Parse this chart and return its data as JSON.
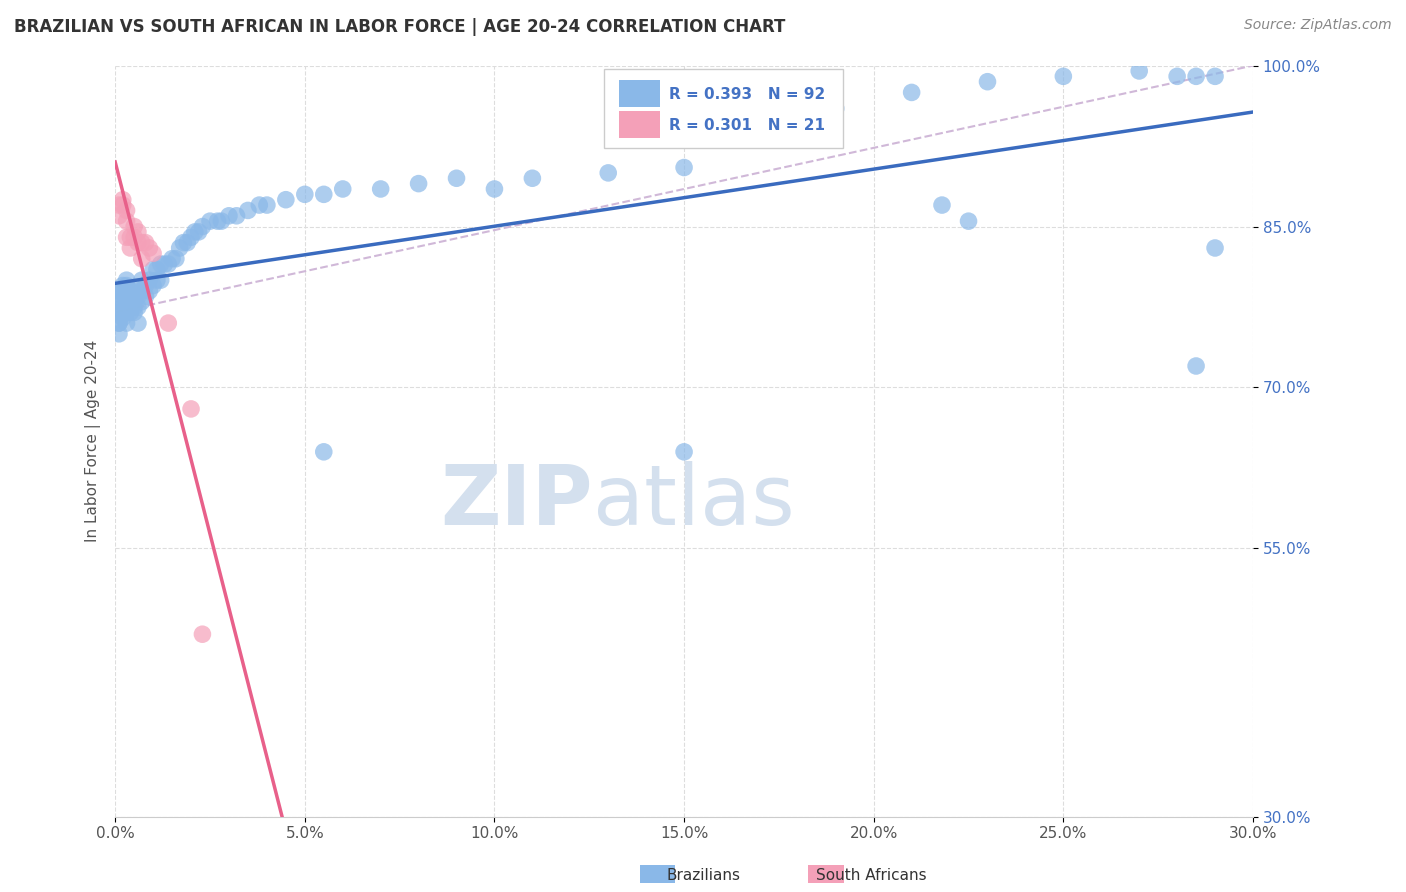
{
  "title": "BRAZILIAN VS SOUTH AFRICAN IN LABOR FORCE | AGE 20-24 CORRELATION CHART",
  "source_text": "Source: ZipAtlas.com",
  "ylabel": "In Labor Force | Age 20-24",
  "xlim": [
    0.0,
    0.3
  ],
  "ylim": [
    0.3,
    1.0
  ],
  "xtick_labels": [
    "0.0%",
    "5.0%",
    "10.0%",
    "15.0%",
    "20.0%",
    "25.0%",
    "30.0%"
  ],
  "xtick_values": [
    0.0,
    0.05,
    0.1,
    0.15,
    0.2,
    0.25,
    0.3
  ],
  "ytick_labels": [
    "100.0%",
    "85.0%",
    "70.0%",
    "55.0%",
    "30.0%"
  ],
  "ytick_values": [
    1.0,
    0.85,
    0.7,
    0.55,
    0.3
  ],
  "R_blue": 0.393,
  "N_blue": 92,
  "R_pink": 0.301,
  "N_pink": 21,
  "blue_color": "#8AB8E8",
  "pink_color": "#F4A0B8",
  "blue_line_color": "#3A6BBF",
  "pink_line_color": "#E8608A",
  "dashed_line_color": "#D0B8D8",
  "watermark_text": "ZIPatlas",
  "watermark_color": "#D4E0EE",
  "legend_blue_label": "Brazilians",
  "legend_pink_label": "South Africans",
  "blue_x": [
    0.001,
    0.001,
    0.001,
    0.001,
    0.001,
    0.001,
    0.002,
    0.002,
    0.002,
    0.002,
    0.002,
    0.002,
    0.002,
    0.003,
    0.003,
    0.003,
    0.003,
    0.003,
    0.003,
    0.003,
    0.003,
    0.004,
    0.004,
    0.004,
    0.004,
    0.004,
    0.005,
    0.005,
    0.005,
    0.005,
    0.006,
    0.006,
    0.006,
    0.006,
    0.007,
    0.007,
    0.007,
    0.008,
    0.008,
    0.009,
    0.009,
    0.01,
    0.01,
    0.011,
    0.011,
    0.012,
    0.012,
    0.013,
    0.014,
    0.015,
    0.016,
    0.017,
    0.018,
    0.019,
    0.02,
    0.021,
    0.022,
    0.023,
    0.025,
    0.027,
    0.028,
    0.03,
    0.032,
    0.035,
    0.038,
    0.04,
    0.045,
    0.05,
    0.055,
    0.06,
    0.07,
    0.08,
    0.09,
    0.1,
    0.11,
    0.13,
    0.15,
    0.17,
    0.19,
    0.21,
    0.23,
    0.25,
    0.27,
    0.28,
    0.285,
    0.29,
    0.218,
    0.225,
    0.15,
    0.285,
    0.055,
    0.29
  ],
  "blue_y": [
    0.75,
    0.76,
    0.77,
    0.78,
    0.79,
    0.76,
    0.765,
    0.77,
    0.775,
    0.78,
    0.785,
    0.79,
    0.795,
    0.76,
    0.77,
    0.775,
    0.78,
    0.785,
    0.79,
    0.795,
    0.8,
    0.77,
    0.775,
    0.78,
    0.785,
    0.79,
    0.77,
    0.775,
    0.78,
    0.785,
    0.76,
    0.775,
    0.785,
    0.79,
    0.78,
    0.79,
    0.8,
    0.785,
    0.795,
    0.79,
    0.8,
    0.795,
    0.81,
    0.8,
    0.81,
    0.8,
    0.815,
    0.815,
    0.815,
    0.82,
    0.82,
    0.83,
    0.835,
    0.835,
    0.84,
    0.845,
    0.845,
    0.85,
    0.855,
    0.855,
    0.855,
    0.86,
    0.86,
    0.865,
    0.87,
    0.87,
    0.875,
    0.88,
    0.88,
    0.885,
    0.885,
    0.89,
    0.895,
    0.885,
    0.895,
    0.9,
    0.905,
    0.94,
    0.96,
    0.975,
    0.985,
    0.99,
    0.995,
    0.99,
    0.72,
    0.83,
    0.87,
    0.855,
    0.64,
    0.99,
    0.64,
    0.99
  ],
  "pink_x": [
    0.001,
    0.001,
    0.002,
    0.002,
    0.003,
    0.003,
    0.003,
    0.004,
    0.004,
    0.005,
    0.005,
    0.006,
    0.006,
    0.007,
    0.007,
    0.008,
    0.009,
    0.01,
    0.014,
    0.02,
    0.023
  ],
  "pink_y": [
    0.86,
    0.87,
    0.87,
    0.875,
    0.84,
    0.855,
    0.865,
    0.83,
    0.84,
    0.84,
    0.85,
    0.835,
    0.845,
    0.82,
    0.835,
    0.835,
    0.83,
    0.825,
    0.76,
    0.68,
    0.47
  ]
}
